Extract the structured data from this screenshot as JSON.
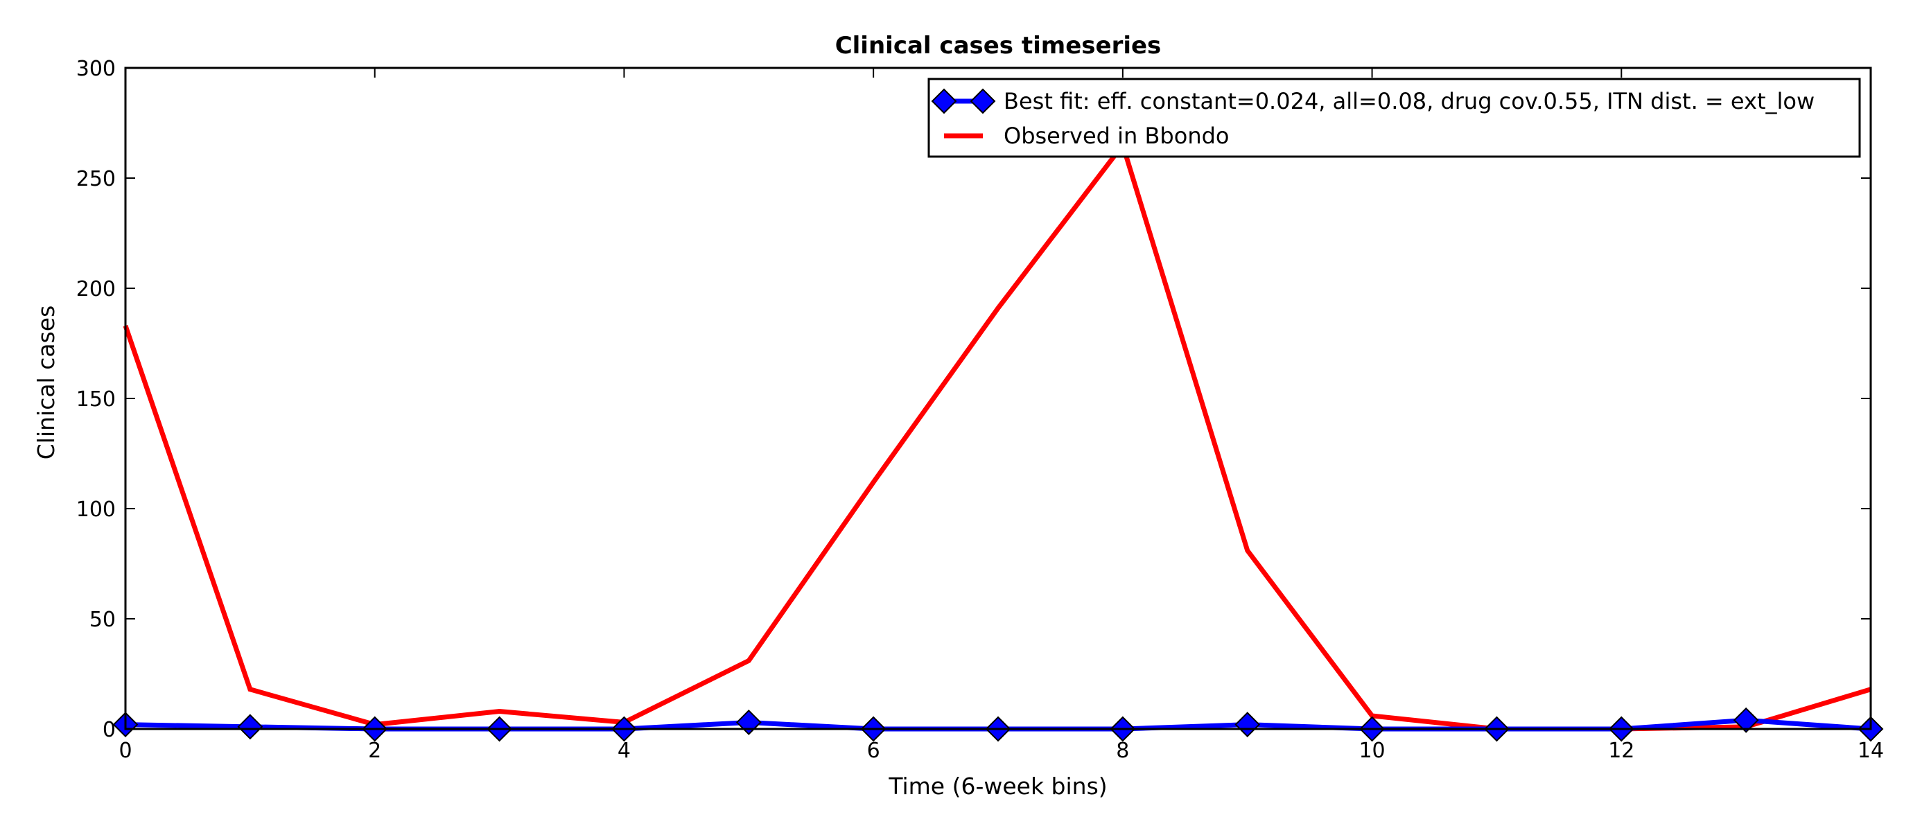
{
  "chart_data": {
    "type": "line",
    "title": "Clinical cases timeseries",
    "xlabel": "Time (6-week bins)",
    "ylabel": "Clinical cases",
    "xlim": [
      0,
      14
    ],
    "ylim": [
      0,
      300
    ],
    "xticks": [
      "0",
      "2",
      "4",
      "6",
      "8",
      "10",
      "12",
      "14"
    ],
    "yticks": [
      "0",
      "50",
      "100",
      "150",
      "200",
      "250",
      "300"
    ],
    "grid": false,
    "legend_position": "top-right",
    "x": [
      0,
      1,
      2,
      3,
      4,
      5,
      6,
      7,
      8,
      9,
      10,
      11,
      12,
      13,
      14
    ],
    "series": [
      {
        "name": "Best fit: eff. constant=0.024, all=0.08, drug cov.0.55, ITN dist. = ext_low",
        "color": "#0000ff",
        "marker": "diamond",
        "values": [
          2,
          1,
          0,
          0,
          0,
          3,
          0,
          0,
          0,
          2,
          0,
          0,
          0,
          4,
          0
        ]
      },
      {
        "name": "Observed in Bbondo",
        "color": "#ff0000",
        "marker": "none",
        "values": [
          183,
          18,
          2,
          8,
          3,
          31,
          112,
          191,
          265,
          81,
          6,
          0,
          0,
          1,
          18
        ]
      }
    ]
  }
}
